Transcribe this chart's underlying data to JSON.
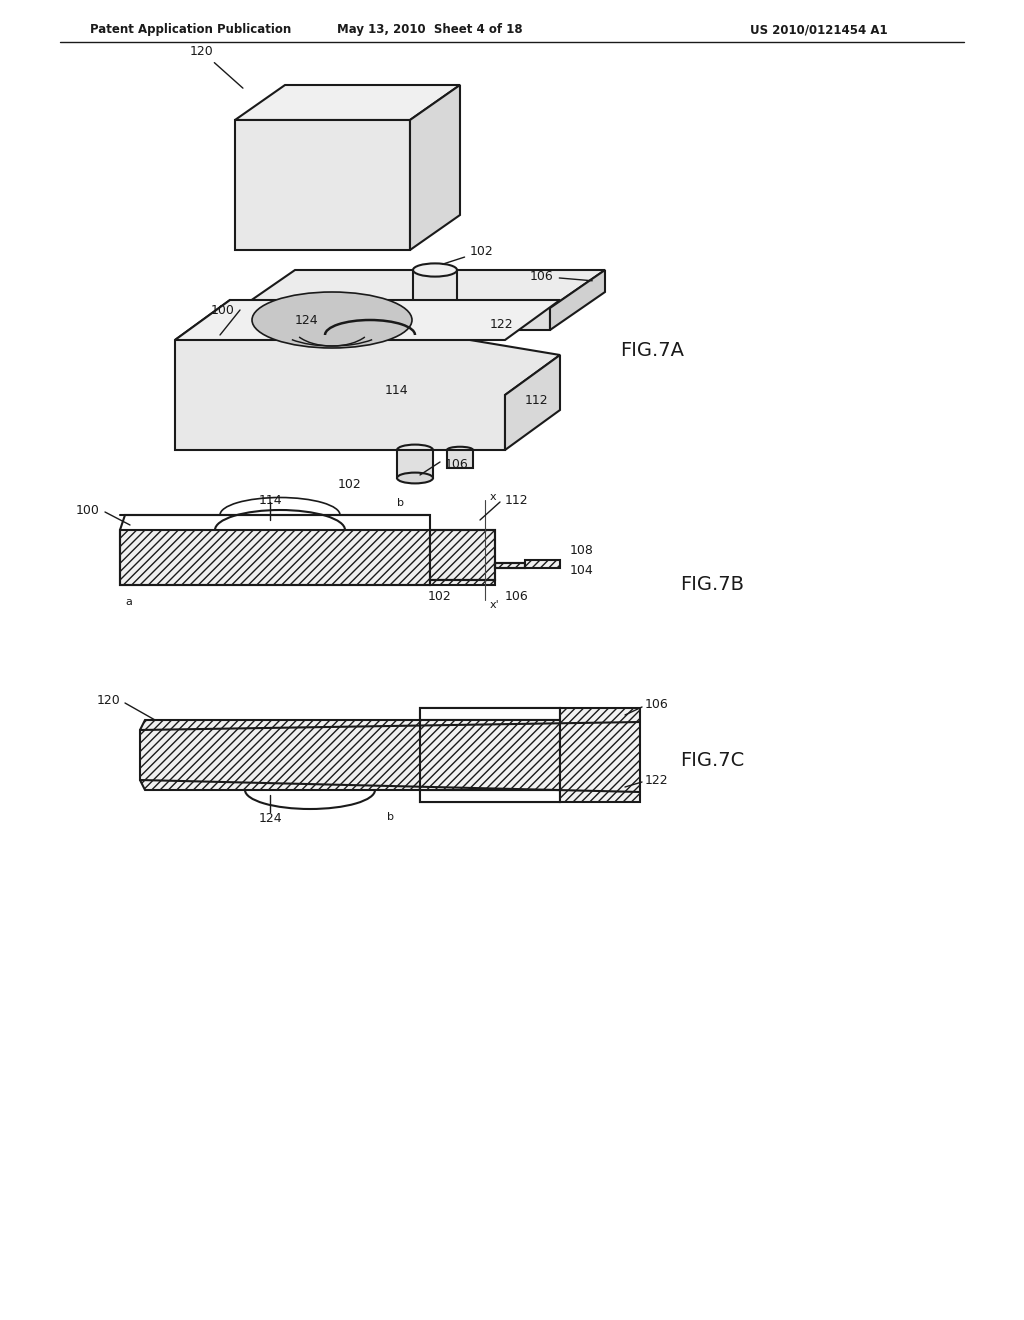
{
  "bg_color": "#ffffff",
  "text_color": "#1a1a1a",
  "header_left": "Patent Application Publication",
  "header_mid": "May 13, 2010  Sheet 4 of 18",
  "header_right": "US 2010/0121454 A1",
  "fig7a_label": "FIG.7A",
  "fig7b_label": "FIG.7B",
  "fig7c_label": "FIG.7C",
  "hatch_pattern": "////",
  "line_color": "#1a1a1a",
  "line_width": 1.5,
  "hatch_color": "#333333"
}
